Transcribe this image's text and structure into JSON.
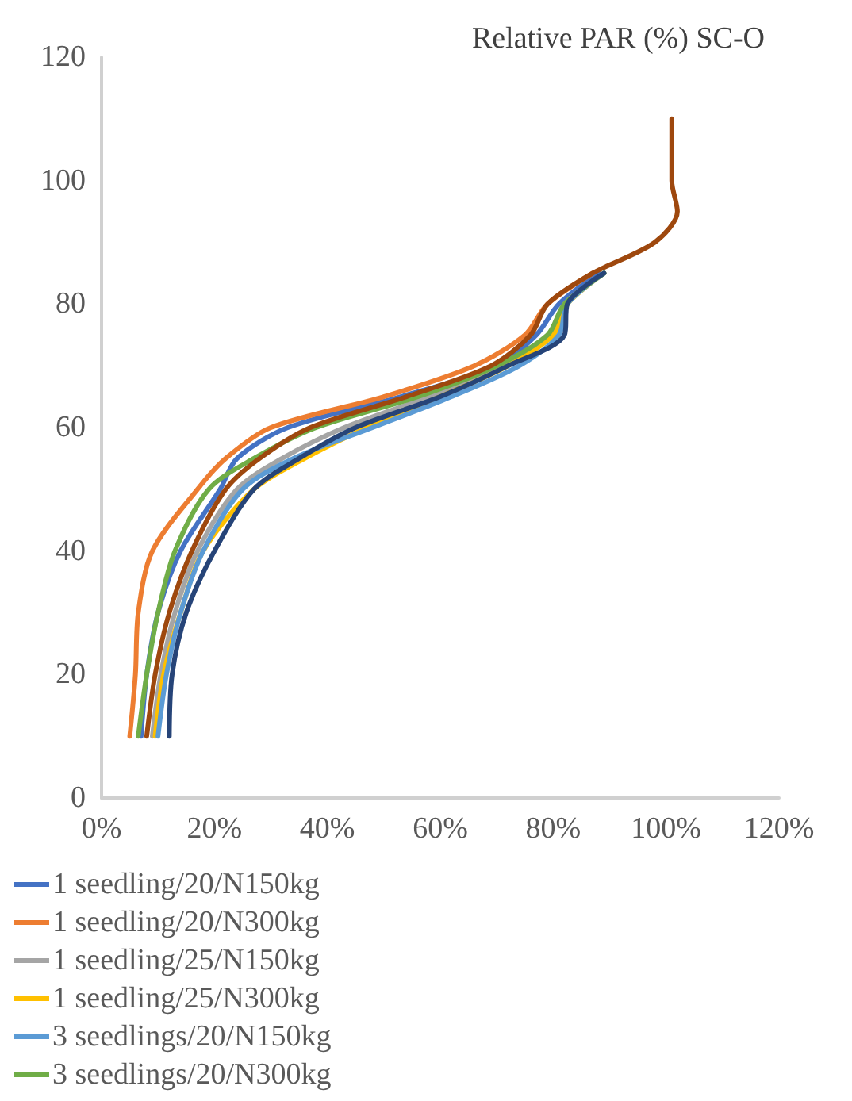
{
  "chart_data": {
    "type": "line",
    "title": "Relative PAR (%) SC-O",
    "xlim": [
      0,
      120
    ],
    "xticks": [
      {
        "value": 0,
        "label": "0%"
      },
      {
        "value": 20,
        "label": "20%"
      },
      {
        "value": 40,
        "label": "40%"
      },
      {
        "value": 60,
        "label": "60%"
      },
      {
        "value": 80,
        "label": "80%"
      },
      {
        "value": 100,
        "label": "100%"
      },
      {
        "value": 120,
        "label": "120%"
      }
    ],
    "ylim": [
      0,
      120
    ],
    "yticks": [
      0,
      20,
      40,
      60,
      80,
      100,
      120
    ],
    "grid": false,
    "legend": "bottom",
    "marker": "none",
    "line_style": "solid",
    "series": [
      {
        "name": "1 seedling/20/N150kg",
        "color": "#4472c4",
        "x": [
          7,
          8,
          10,
          14,
          21,
          24,
          33,
          53,
          70,
          77,
          81,
          88
        ],
        "values": [
          10,
          20,
          30,
          40,
          50,
          55,
          60,
          65,
          70,
          75,
          80,
          85
        ]
      },
      {
        "name": "1 seedling/20/N300kg",
        "color": "#ed7d31",
        "x": [
          5,
          6,
          6.5,
          9,
          17,
          22,
          30,
          50,
          66,
          75,
          79,
          87
        ],
        "values": [
          10,
          20,
          30,
          40,
          50,
          55,
          60,
          65,
          70,
          75,
          80,
          85
        ]
      },
      {
        "name": "1 seedling/25/N150kg",
        "color": "#a5a5a5",
        "x": [
          9,
          10.5,
          13,
          17,
          24,
          32,
          43,
          58,
          71,
          80,
          82,
          89
        ],
        "values": [
          10,
          20,
          30,
          40,
          50,
          55,
          60,
          65,
          70,
          75,
          80,
          85
        ]
      },
      {
        "name": "1 seedling/25/N300kg",
        "color": "#ffc000",
        "x": [
          9.5,
          11,
          14,
          18,
          27,
          36,
          47,
          60,
          72,
          80,
          82.5,
          89
        ],
        "values": [
          10,
          20,
          30,
          40,
          50,
          55,
          60,
          65,
          70,
          75,
          80,
          85
        ]
      },
      {
        "name": "3 seedlings/20/N150kg",
        "color": "#5b9bd5",
        "x": [
          10,
          11.5,
          14,
          18,
          25,
          34,
          48,
          62,
          74,
          81,
          82.5,
          89
        ],
        "values": [
          10,
          20,
          30,
          40,
          50,
          55,
          60,
          65,
          70,
          75,
          80,
          85
        ]
      },
      {
        "name": "3 seedlings/20/N300kg",
        "color": "#70ad47",
        "x": [
          6.5,
          8,
          10,
          13,
          19,
          27,
          38,
          56,
          70,
          79,
          82,
          89
        ],
        "values": [
          10,
          20,
          30,
          40,
          50,
          55,
          60,
          65,
          70,
          75,
          80,
          85
        ]
      },
      {
        "color": "#264478",
        "x": [
          12,
          12.5,
          15,
          20,
          27,
          35,
          45,
          60,
          72,
          82,
          82.5,
          89
        ],
        "values": [
          10,
          20,
          30,
          40,
          50,
          55,
          60,
          65,
          70,
          75,
          80,
          85
        ]
      },
      {
        "color": "#9e480e",
        "x": [
          8,
          9.5,
          12,
          16,
          22,
          28,
          37,
          54,
          69,
          76,
          79,
          87,
          98,
          102,
          101,
          101
        ],
        "values": [
          10,
          20,
          30,
          40,
          50,
          55,
          60,
          65,
          70,
          75,
          80,
          85,
          90,
          95,
          100,
          110
        ]
      }
    ]
  }
}
